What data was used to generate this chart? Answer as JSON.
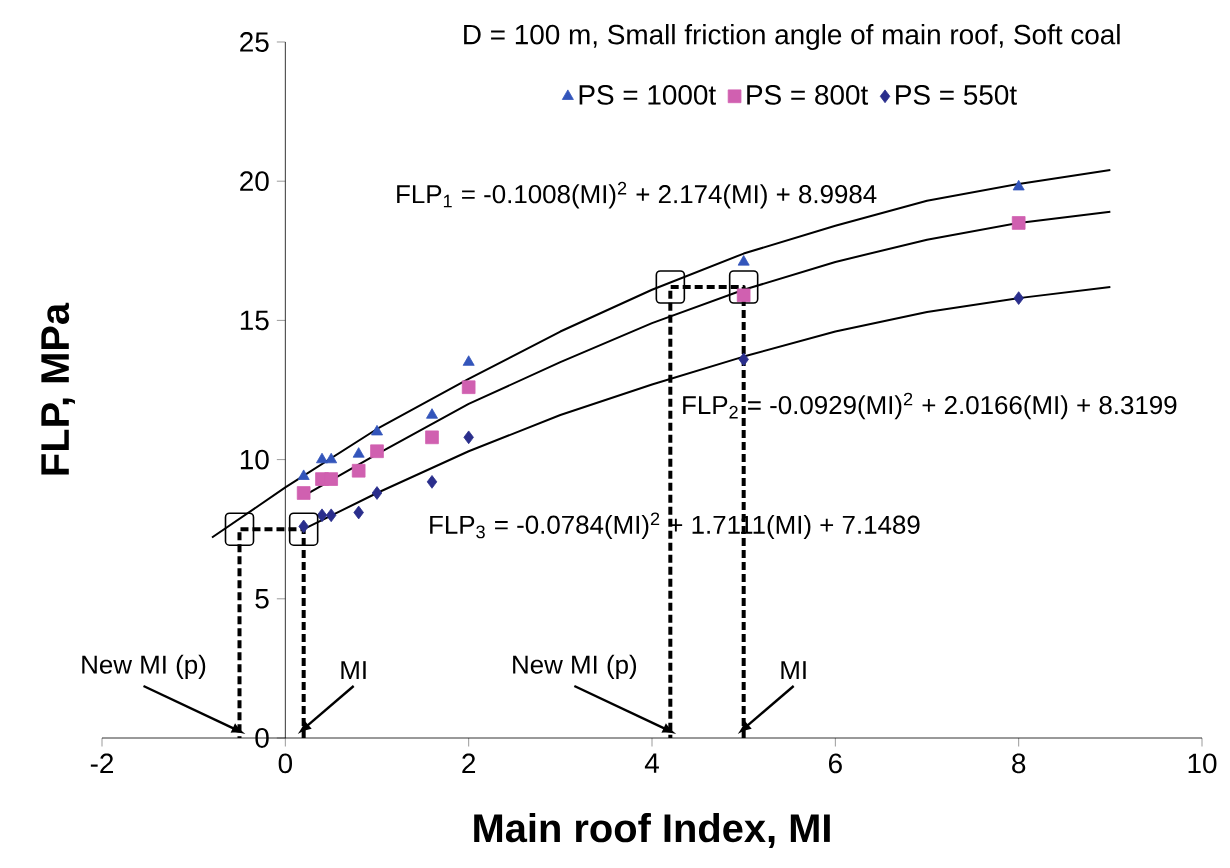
{
  "chart_data": {
    "type": "scatter",
    "title": "D = 100 m, Small friction angle of main roof, Soft coal",
    "xlabel": "Main roof Index, MI",
    "ylabel": "FLP, MPa",
    "xlim": [
      -2,
      10
    ],
    "ylim": [
      0,
      25
    ],
    "xticks": [
      -2,
      0,
      2,
      4,
      6,
      8,
      10
    ],
    "yticks": [
      0,
      5,
      10,
      15,
      20,
      25
    ],
    "legend": "top",
    "grid": false,
    "series": [
      {
        "name": "PS = 1000t",
        "type": "scatter",
        "marker": "triangle",
        "color": "#3355bb",
        "x": [
          0.2,
          0.4,
          0.5,
          0.8,
          1.0,
          1.6,
          2.0,
          5.0,
          8.0
        ],
        "values": [
          9.4,
          10.0,
          10.0,
          10.2,
          11.0,
          11.6,
          13.5,
          17.1,
          19.8
        ]
      },
      {
        "name": "PS = 800t",
        "type": "scatter",
        "marker": "square",
        "color": "#d060b0",
        "x": [
          0.2,
          0.4,
          0.5,
          0.8,
          1.0,
          1.6,
          2.0,
          5.0,
          8.0
        ],
        "values": [
          8.8,
          9.3,
          9.3,
          9.6,
          10.3,
          10.8,
          12.6,
          15.9,
          18.5
        ]
      },
      {
        "name": "PS = 550t",
        "type": "scatter",
        "marker": "diamond",
        "color": "#2a2e8c",
        "x": [
          0.2,
          0.4,
          0.5,
          0.8,
          1.0,
          1.6,
          2.0,
          5.0,
          8.0
        ],
        "values": [
          7.6,
          8.0,
          8.0,
          8.1,
          8.8,
          9.2,
          10.8,
          13.6,
          15.8
        ]
      },
      {
        "type": "line",
        "color": "#000000",
        "line_style": "solid",
        "x": [
          -0.8,
          0,
          1,
          2,
          3,
          4,
          5,
          6,
          7,
          8,
          9
        ],
        "values": [
          7.2,
          9.0,
          11.1,
          12.9,
          14.6,
          16.1,
          17.4,
          18.4,
          19.3,
          19.9,
          20.4
        ]
      },
      {
        "type": "line",
        "color": "#000000",
        "line_style": "solid",
        "x": [
          0.2,
          1,
          2,
          3,
          4,
          5,
          6,
          7,
          8,
          9
        ],
        "values": [
          8.7,
          10.2,
          12.0,
          13.5,
          14.9,
          16.1,
          17.1,
          17.9,
          18.5,
          18.9
        ]
      },
      {
        "type": "line",
        "color": "#000000",
        "line_style": "solid",
        "x": [
          0.2,
          1,
          2,
          3,
          4,
          5,
          6,
          7,
          8,
          9
        ],
        "values": [
          7.5,
          8.8,
          10.3,
          11.6,
          12.7,
          13.7,
          14.6,
          15.3,
          15.8,
          16.2
        ]
      },
      {
        "type": "line",
        "color": "#000000",
        "line_style": "dashed",
        "x": [
          0.2,
          0.2,
          -0.5,
          -0.5
        ],
        "values": [
          0,
          7.5,
          7.5,
          0
        ]
      },
      {
        "type": "line",
        "color": "#000000",
        "line_style": "dashed",
        "x": [
          5.0,
          5.0,
          4.2,
          4.2
        ],
        "values": [
          0,
          16.2,
          16.2,
          0
        ]
      }
    ],
    "annotations": [
      "FLP$_{1}$ = -0.1008(MI)$^{2}$ + 2.174(MI) + 8.9984",
      "FLP$_{2}$ = -0.0929(MI)$^{2}$ + 2.0166(MI) + 8.3199",
      "FLP$_{3}$ = -0.0784(MI)$^{2}$ + 1.7111(MI) + 7.1489",
      {
        "text": "New MI (p)",
        "x": -0.5,
        "y": 0
      },
      {
        "text": "MI",
        "x": 0.2,
        "y": 0
      },
      {
        "text": "New MI (p)",
        "x": 4.2,
        "y": 0
      },
      {
        "text": "MI",
        "x": 5.0,
        "y": 0
      }
    ]
  }
}
